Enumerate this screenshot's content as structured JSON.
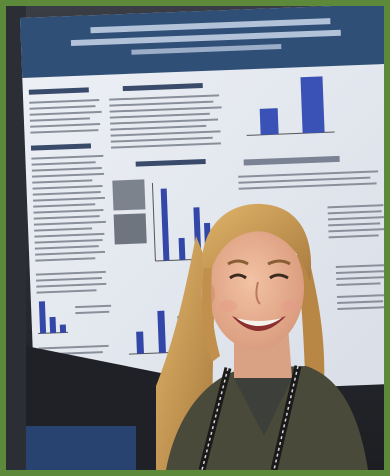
{
  "photo": {
    "subject": "poster-presenter-photo",
    "colors": {
      "frame": "#5c8a3a",
      "poster_header": "#2f4f77",
      "poster_paper": "#e9ecf2",
      "bar_blue": "#3347a8",
      "hair": "#c89a55",
      "jacket": "#4a4a3a",
      "backdrop": "#1f2126"
    }
  }
}
